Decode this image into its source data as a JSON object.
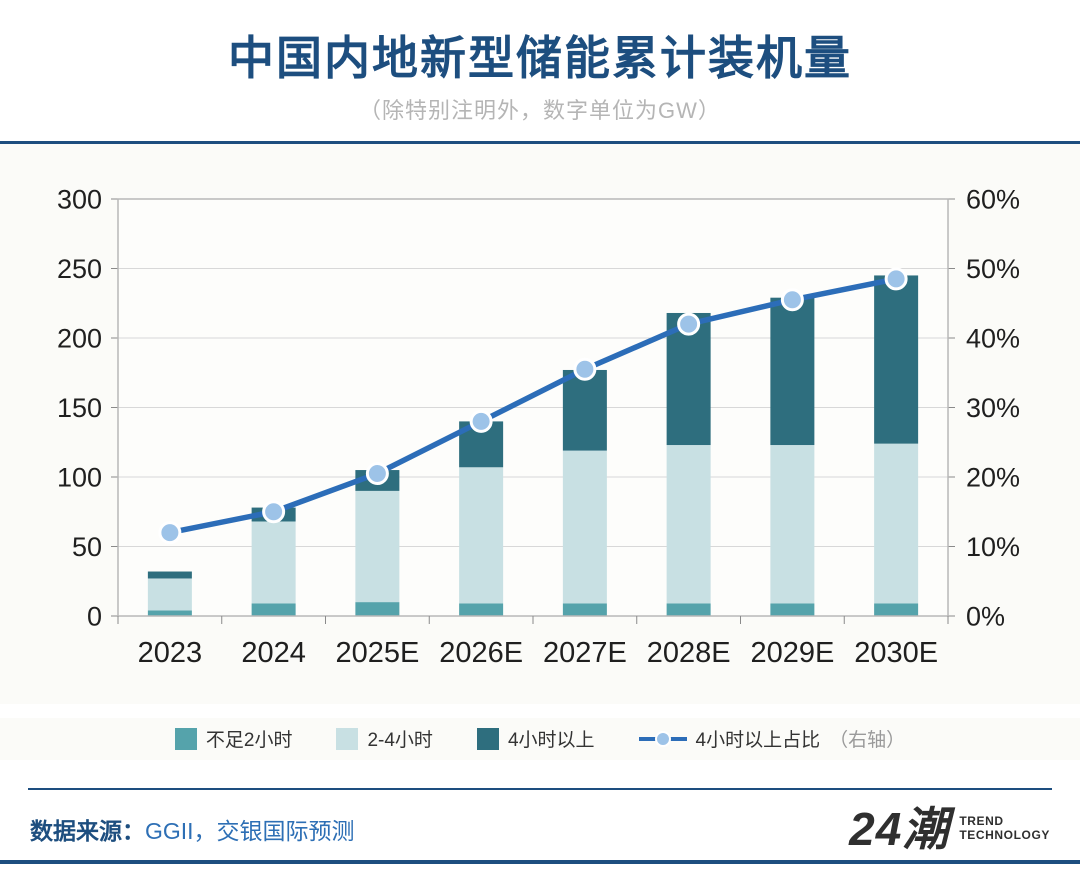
{
  "header": {
    "title": "中国内地新型储能累计装机量",
    "subtitle": "（除特别注明外，数字单位为GW）"
  },
  "chart_data": {
    "type": "bar",
    "subtype": "stacked-bar-with-line",
    "title": "中国内地新型储能累计装机量",
    "unit": "GW",
    "categories": [
      "2023",
      "2024",
      "2025E",
      "2026E",
      "2027E",
      "2028E",
      "2029E",
      "2030E"
    ],
    "series": [
      {
        "name": "不足2小时",
        "color": "#55a3ab",
        "values": [
          4,
          9,
          10,
          9,
          9,
          9,
          9,
          9
        ]
      },
      {
        "name": "2-4小时",
        "color": "#c8e0e3",
        "values": [
          23,
          59,
          80,
          98,
          110,
          114,
          114,
          115
        ]
      },
      {
        "name": "4小时以上",
        "color": "#2e6e7e",
        "values": [
          5,
          10,
          15,
          33,
          58,
          95,
          106,
          121
        ]
      }
    ],
    "totals": [
      32,
      78,
      105,
      140,
      177,
      218,
      229,
      245
    ],
    "line_series": {
      "name": "4小时以上占比",
      "suffix": "（右轴）",
      "color": "#2c6db8",
      "marker_fill": "#9dc3e8",
      "values": [
        12,
        15,
        20.5,
        28,
        35.5,
        42,
        45.5,
        48.5
      ]
    },
    "left_axis": {
      "min": 0,
      "max": 300,
      "step": 50,
      "ticks": [
        "0",
        "50",
        "100",
        "150",
        "200",
        "250",
        "300"
      ]
    },
    "right_axis": {
      "min": 0,
      "max": 60,
      "step": 10,
      "ticks": [
        "0%",
        "10%",
        "20%",
        "30%",
        "40%",
        "50%",
        "60%"
      ]
    },
    "grid": true,
    "legend_position": "bottom",
    "plot_bg": "#fdfdfb",
    "grid_color": "#d8d8d8",
    "border_color": "#b8b8b8",
    "axis_text_color": "#1f1f1f"
  },
  "footer": {
    "source_label": "数据来源：",
    "source_value": "GGII，交银国际预测",
    "logo_text": "24潮",
    "logo_line1": "TREND",
    "logo_line2": "TECHNOLOGY"
  }
}
